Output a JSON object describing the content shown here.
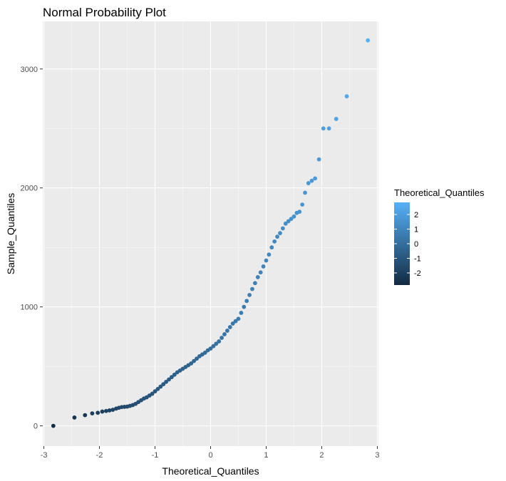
{
  "chart_data": {
    "type": "scatter",
    "title": "Normal Probability Plot",
    "xlabel": "Theoretical_Quantiles",
    "ylabel": "Sample_Quantiles",
    "xlim": [
      -3.02,
      3.02
    ],
    "ylim": [
      -170,
      3400
    ],
    "x_ticks": [
      -3,
      -2,
      -1,
      0,
      1,
      2,
      3
    ],
    "x_tick_labels": [
      "-3",
      "-2",
      "-1",
      "0",
      "1",
      "2",
      "3"
    ],
    "y_ticks": [
      0,
      1000,
      2000,
      3000
    ],
    "y_tick_labels": [
      "0",
      "1000",
      "2000",
      "3000"
    ],
    "grid": true,
    "legend": {
      "title": "Theoretical_Quantiles",
      "position": "right",
      "ticks": [
        2,
        1,
        0,
        -1,
        -2
      ],
      "tick_labels": [
        "2",
        "1",
        "0",
        "-1",
        "-2"
      ],
      "range": [
        -2.83,
        2.83
      ]
    },
    "colors": {
      "panel_bg": "#ebebeb",
      "grid_major": "#ffffff",
      "low": "#132b43",
      "high": "#56b1f7"
    },
    "points": {
      "x": [
        -2.83,
        -2.45,
        -2.26,
        -2.13,
        -2.03,
        -1.95,
        -1.88,
        -1.82,
        -1.76,
        -1.7,
        -1.65,
        -1.6,
        -1.55,
        -1.5,
        -1.45,
        -1.4,
        -1.35,
        -1.3,
        -1.25,
        -1.2,
        -1.15,
        -1.1,
        -1.05,
        -1.0,
        -0.95,
        -0.9,
        -0.85,
        -0.8,
        -0.75,
        -0.7,
        -0.65,
        -0.6,
        -0.55,
        -0.5,
        -0.45,
        -0.4,
        -0.35,
        -0.3,
        -0.25,
        -0.2,
        -0.15,
        -0.1,
        -0.05,
        0.0,
        0.05,
        0.1,
        0.15,
        0.2,
        0.25,
        0.3,
        0.35,
        0.4,
        0.45,
        0.5,
        0.55,
        0.6,
        0.65,
        0.7,
        0.75,
        0.8,
        0.85,
        0.9,
        0.95,
        1.0,
        1.05,
        1.1,
        1.15,
        1.2,
        1.25,
        1.3,
        1.35,
        1.4,
        1.45,
        1.5,
        1.55,
        1.6,
        1.65,
        1.7,
        1.76,
        1.82,
        1.88,
        1.95,
        2.03,
        2.13,
        2.26,
        2.45,
        2.83
      ],
      "y": [
        0,
        70,
        90,
        105,
        110,
        120,
        125,
        130,
        135,
        145,
        152,
        158,
        160,
        162,
        168,
        175,
        185,
        200,
        215,
        230,
        240,
        255,
        270,
        290,
        310,
        330,
        350,
        370,
        390,
        410,
        430,
        450,
        465,
        480,
        495,
        510,
        525,
        545,
        565,
        585,
        600,
        615,
        635,
        650,
        670,
        690,
        710,
        740,
        770,
        800,
        830,
        860,
        880,
        900,
        950,
        1000,
        1050,
        1100,
        1150,
        1200,
        1250,
        1290,
        1340,
        1390,
        1440,
        1500,
        1550,
        1590,
        1620,
        1660,
        1700,
        1720,
        1740,
        1760,
        1790,
        1800,
        1860,
        1960,
        2040,
        2060,
        2080,
        2240,
        2500,
        2500,
        2580,
        2770,
        3240
      ]
    }
  }
}
